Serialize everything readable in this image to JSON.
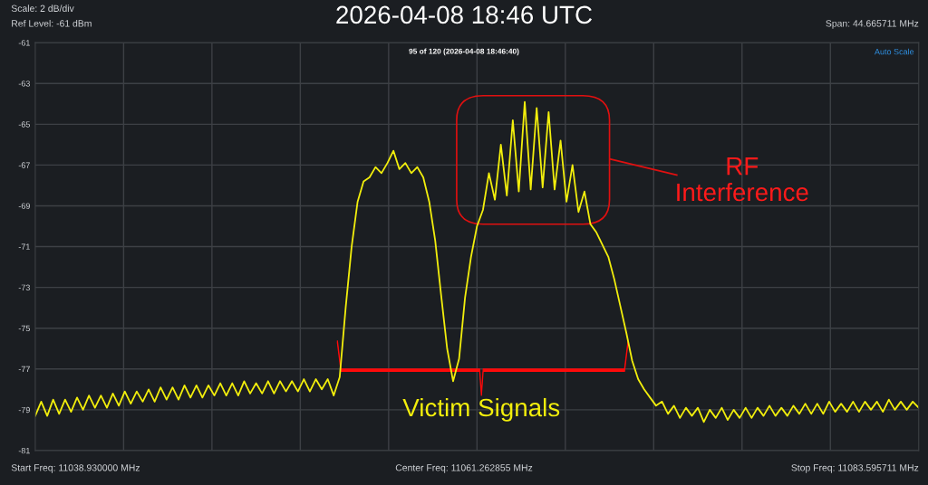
{
  "chart_data": {
    "type": "line",
    "title": "2026-04-08 18:46 UTC",
    "subtitle": "95 of 120 (2026-04-08 18:46:40)",
    "annotations": [
      "Scale: 2 dB/div",
      "Ref Level: -61 dBm",
      "Span: 44.665711 MHz",
      "Auto Scale",
      "Start Freq: 11038.930000 MHz",
      "Center Freq: 11061.262855 MHz",
      "Stop Freq: 11083.595711 MHz",
      "RF Interference",
      "Victim Signals"
    ],
    "categories": [
      null,
      null,
      null,
      null,
      null,
      null,
      null,
      null,
      null,
      null,
      null,
      null,
      null,
      null,
      null,
      null,
      null,
      null,
      null,
      null,
      null,
      null,
      null,
      null,
      null,
      null,
      null,
      null,
      null,
      null,
      null,
      null,
      null,
      null,
      null,
      null,
      null,
      null,
      null,
      null,
      null,
      null,
      null,
      null,
      null,
      null,
      null,
      null,
      null,
      null,
      null,
      null,
      null,
      null,
      null,
      null,
      null,
      null,
      null,
      null,
      null,
      null,
      null,
      null,
      null,
      null,
      null,
      null,
      null,
      null,
      null,
      null,
      null,
      null,
      null,
      null,
      null,
      null,
      null,
      null,
      null,
      null,
      null,
      null,
      null,
      null,
      null,
      null,
      null,
      null,
      null,
      null,
      null,
      null,
      null,
      null,
      null,
      null,
      null,
      null,
      null,
      null,
      null,
      null,
      null,
      null,
      null,
      null,
      null,
      null,
      null,
      null,
      null,
      null,
      null,
      null,
      null,
      null,
      null,
      null,
      null,
      null,
      null,
      null,
      null,
      null,
      null,
      null,
      null,
      null,
      null,
      null,
      null,
      null,
      null,
      null,
      null,
      null,
      null,
      null,
      null,
      null,
      null,
      null,
      null,
      null,
      null,
      null,
      null
    ],
    "series": [
      {
        "color": "#f2ee0c",
        "values": [
          -79.3,
          -78.6,
          -79.3,
          -78.5,
          -79.2,
          -78.5,
          -79.1,
          -78.4,
          -79.0,
          -78.3,
          -78.9,
          -78.3,
          -78.9,
          -78.2,
          -78.8,
          -78.1,
          -78.7,
          -78.1,
          -78.6,
          -78.0,
          -78.6,
          -77.9,
          -78.5,
          -77.9,
          -78.5,
          -77.8,
          -78.4,
          -77.8,
          -78.4,
          -77.8,
          -78.3,
          -77.7,
          -78.3,
          -77.7,
          -78.3,
          -77.6,
          -78.2,
          -77.7,
          -78.2,
          -77.6,
          -78.2,
          -77.6,
          -78.1,
          -77.6,
          -78.1,
          -77.5,
          -78.1,
          -77.5,
          -78.0,
          -77.5,
          -78.3,
          -77.4,
          -74.0,
          -71.0,
          -68.8,
          -67.8,
          -67.6,
          -67.1,
          -67.4,
          -66.9,
          -66.3,
          -67.2,
          -66.9,
          -67.4,
          -67.1,
          -67.6,
          -68.8,
          -70.7,
          -73.4,
          -76.0,
          -77.6,
          -76.5,
          -73.5,
          -71.5,
          -70.0,
          -69.2,
          -67.4,
          -68.7,
          -66.0,
          -68.5,
          -64.8,
          -68.3,
          -63.9,
          -68.2,
          -64.2,
          -68.1,
          -64.4,
          -68.2,
          -65.8,
          -68.8,
          -67.0,
          -69.3,
          -68.3,
          -69.9,
          -70.3,
          -70.9,
          -71.5,
          -72.6,
          -73.9,
          -75.2,
          -76.6,
          -77.5,
          -78.0,
          -78.4,
          -78.8,
          -78.6,
          -79.2,
          -78.8,
          -79.4,
          -78.9,
          -79.3,
          -78.9,
          -79.6,
          -79.0,
          -79.4,
          -78.9,
          -79.5,
          -79.0,
          -79.4,
          -78.9,
          -79.4,
          -78.9,
          -79.3,
          -78.8,
          -79.3,
          -78.9,
          -79.3,
          -78.8,
          -79.2,
          -78.7,
          -79.2,
          -78.7,
          -79.2,
          -78.6,
          -79.1,
          -78.7,
          -79.1,
          -78.6,
          -79.1,
          -78.6,
          -79.0,
          -78.6,
          -79.1,
          -78.5,
          -79.0,
          -78.6,
          -79.0,
          -78.6,
          -78.9
        ]
      }
    ],
    "ylim": [
      -81,
      -61
    ],
    "yticks": [
      -81,
      -79,
      -77,
      -75,
      -73,
      -71,
      -69,
      -67,
      -65,
      -63,
      -61
    ],
    "tick_labels": "y",
    "grid": true,
    "marker": "none",
    "line_style": "solid"
  }
}
